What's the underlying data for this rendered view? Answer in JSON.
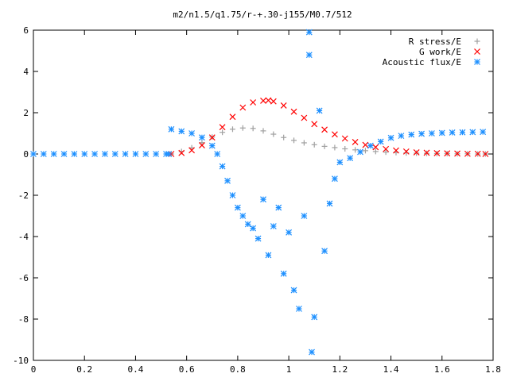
{
  "chart_data": {
    "type": "scatter",
    "title": "m2/n1.5/q1.75/r-+.30-j155/M0.7/512",
    "xlabel": "",
    "ylabel": "",
    "xlim": [
      0,
      1.8
    ],
    "ylim": [
      -10,
      6
    ],
    "xticks": [
      "0",
      "0.2",
      "0.4",
      "0.6",
      "0.8",
      "1",
      "1.2",
      "1.4",
      "1.6",
      "1.8"
    ],
    "yticks": [
      "-10",
      "-8",
      "-6",
      "-4",
      "-2",
      "0",
      "2",
      "4",
      "6"
    ],
    "grid": false,
    "legend_position": "top-right",
    "series": [
      {
        "name": "R stress/E",
        "color": "#a0a0a0",
        "marker": "plus",
        "x": [
          0.54,
          0.58,
          0.62,
          0.66,
          0.7,
          0.74,
          0.78,
          0.82,
          0.86,
          0.9,
          0.94,
          0.98,
          1.02,
          1.06,
          1.1,
          1.14,
          1.18,
          1.22,
          1.26,
          1.3,
          1.34,
          1.38,
          1.42,
          1.46,
          1.5,
          1.54,
          1.58,
          1.62,
          1.66,
          1.7,
          1.74,
          1.77
        ],
        "y": [
          0.0,
          0.12,
          0.3,
          0.55,
          0.82,
          1.05,
          1.2,
          1.26,
          1.24,
          1.12,
          0.96,
          0.8,
          0.66,
          0.54,
          0.45,
          0.37,
          0.31,
          0.25,
          0.2,
          0.16,
          0.12,
          0.09,
          0.07,
          0.05,
          0.04,
          0.03,
          0.02,
          0.02,
          0.01,
          0.01,
          0.0,
          0.0
        ]
      },
      {
        "name": "G work/E",
        "color": "#ff0000",
        "marker": "cross",
        "x": [
          0.54,
          0.58,
          0.62,
          0.66,
          0.7,
          0.74,
          0.78,
          0.82,
          0.86,
          0.9,
          0.92,
          0.94,
          0.98,
          1.02,
          1.06,
          1.1,
          1.14,
          1.18,
          1.22,
          1.26,
          1.3,
          1.34,
          1.38,
          1.42,
          1.46,
          1.5,
          1.54,
          1.58,
          1.62,
          1.66,
          1.7,
          1.74,
          1.77
        ],
        "y": [
          0.0,
          0.05,
          0.18,
          0.42,
          0.8,
          1.3,
          1.8,
          2.25,
          2.5,
          2.58,
          2.6,
          2.55,
          2.35,
          2.05,
          1.75,
          1.45,
          1.18,
          0.95,
          0.75,
          0.58,
          0.44,
          0.33,
          0.24,
          0.17,
          0.12,
          0.08,
          0.06,
          0.04,
          0.03,
          0.02,
          0.01,
          0.01,
          0.0
        ]
      },
      {
        "name": "Acoustic flux/E",
        "color": "#1e90ff",
        "marker": "star",
        "x": [
          0.0,
          0.04,
          0.08,
          0.12,
          0.16,
          0.2,
          0.24,
          0.28,
          0.32,
          0.36,
          0.4,
          0.44,
          0.48,
          0.52,
          0.53,
          0.54,
          0.58,
          0.62,
          0.66,
          0.7,
          0.72,
          0.74,
          0.76,
          0.78,
          0.8,
          0.82,
          0.84,
          0.86,
          0.88,
          0.9,
          0.92,
          0.94,
          0.96,
          0.98,
          1.0,
          1.02,
          1.04,
          1.06,
          1.08,
          1.08,
          1.09,
          1.1,
          1.12,
          1.14,
          1.16,
          1.18,
          1.2,
          1.24,
          1.28,
          1.32,
          1.36,
          1.4,
          1.44,
          1.48,
          1.52,
          1.56,
          1.6,
          1.64,
          1.68,
          1.72,
          1.76
        ],
        "y": [
          0.0,
          0.0,
          0.0,
          0.0,
          0.0,
          0.0,
          0.0,
          0.0,
          0.0,
          0.0,
          0.0,
          0.0,
          0.0,
          0.0,
          0.0,
          1.2,
          1.1,
          1.0,
          0.8,
          0.4,
          0.0,
          -0.6,
          -1.3,
          -2.0,
          -2.6,
          -3.0,
          -3.4,
          -3.6,
          -4.1,
          -2.2,
          -4.9,
          -3.5,
          -2.6,
          -5.8,
          -3.8,
          -6.6,
          -7.5,
          -3.0,
          5.9,
          4.8,
          -9.6,
          -7.9,
          2.1,
          -4.7,
          -2.4,
          -1.2,
          -0.4,
          -0.2,
          0.1,
          0.4,
          0.6,
          0.78,
          0.88,
          0.94,
          0.98,
          1.0,
          1.02,
          1.04,
          1.05,
          1.06,
          1.07
        ]
      }
    ]
  }
}
